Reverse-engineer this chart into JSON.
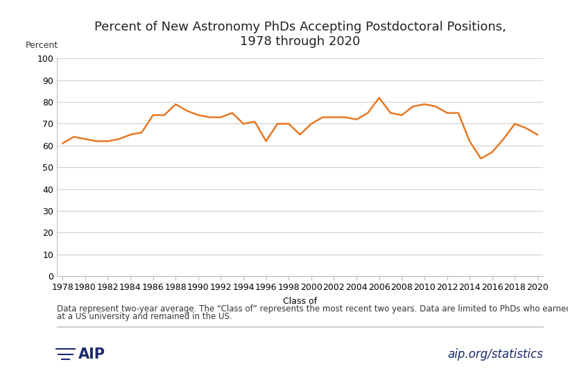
{
  "title": "Percent of New Astronomy PhDs Accepting Postdoctoral Positions,\n1978 through 2020",
  "ylabel": "Percent",
  "xlabel": "Class of",
  "line_color": "#E87722",
  "background_color": "#ffffff",
  "years": [
    1978,
    1979,
    1980,
    1981,
    1982,
    1983,
    1984,
    1985,
    1986,
    1987,
    1988,
    1989,
    1990,
    1991,
    1992,
    1993,
    1994,
    1995,
    1996,
    1997,
    1998,
    1999,
    2000,
    2001,
    2002,
    2003,
    2004,
    2005,
    2006,
    2007,
    2008,
    2009,
    2010,
    2011,
    2012,
    2013,
    2014,
    2015,
    2016,
    2017,
    2018,
    2019,
    2020
  ],
  "values": [
    61,
    64,
    63,
    62,
    62,
    63,
    65,
    66,
    74,
    74,
    79,
    76,
    74,
    73,
    73,
    75,
    70,
    71,
    62,
    70,
    70,
    65,
    70,
    73,
    73,
    73,
    72,
    75,
    82,
    75,
    74,
    78,
    79,
    78,
    75,
    75,
    62,
    54,
    57,
    63,
    70,
    68,
    65
  ],
  "ylim": [
    0,
    100
  ],
  "yticks": [
    0,
    10,
    20,
    30,
    40,
    50,
    60,
    70,
    80,
    90,
    100
  ],
  "xtick_years": [
    1978,
    1980,
    1982,
    1984,
    1986,
    1988,
    1990,
    1992,
    1994,
    1996,
    1998,
    2000,
    2002,
    2004,
    2006,
    2008,
    2010,
    2012,
    2014,
    2016,
    2018,
    2020
  ],
  "footnote_line1": "Data represent two-year average. The “Class of” represents the most recent two years. Data are limited to PhDs who earned their degree",
  "footnote_line2": "at a US university and remained in the US.",
  "aip_text": "aip.org/statistics",
  "title_fontsize": 13,
  "axis_label_fontsize": 9,
  "tick_fontsize": 9,
  "footnote_fontsize": 8.5,
  "line_width": 1.8,
  "grid_color": "#d0d0d0",
  "spine_color": "#bbbbbb",
  "aip_color": "#1B2A6B",
  "plot_bg": "#ffffff"
}
